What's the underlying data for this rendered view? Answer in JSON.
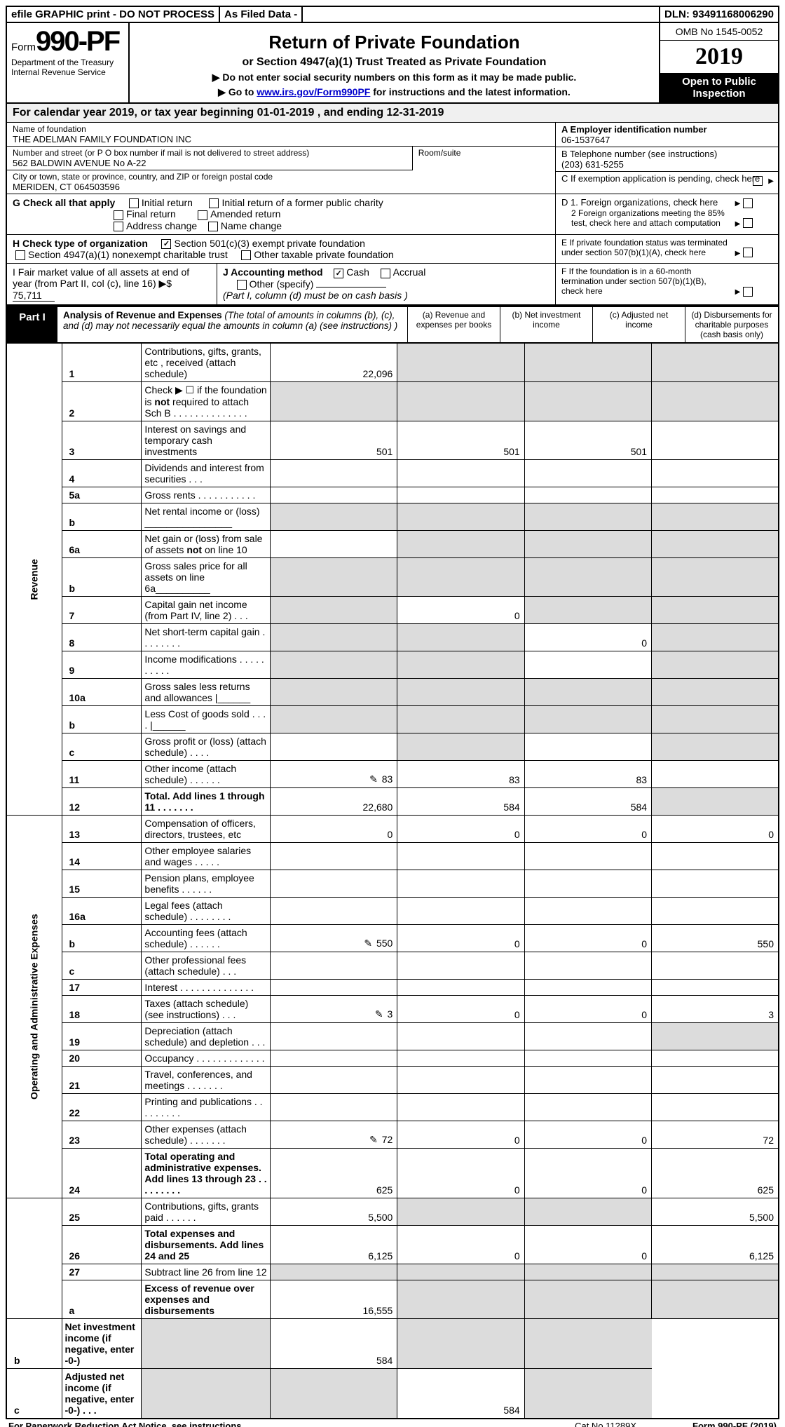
{
  "top": {
    "efile": "efile GRAPHIC print - DO NOT PROCESS",
    "asfiled": "As Filed Data -",
    "dln": "DLN: 93491168006290"
  },
  "form": {
    "prefix": "Form",
    "number": "990-PF",
    "dept1": "Department of the Treasury",
    "dept2": "Internal Revenue Service",
    "title": "Return of Private Foundation",
    "subtitle": "or Section 4947(a)(1) Trust Treated as Private Foundation",
    "warn1": "▶ Do not enter social security numbers on this form as it may be made public.",
    "warn2_pre": "▶ Go to ",
    "warn2_link": "www.irs.gov/Form990PF",
    "warn2_post": " for instructions and the latest information.",
    "omb": "OMB No 1545-0052",
    "year": "2019",
    "inspect": "Open to Public Inspection"
  },
  "calyear": "For calendar year 2019, or tax year beginning 01-01-2019                           , and ending 12-31-2019",
  "id": {
    "name_label": "Name of foundation",
    "name": "THE ADELMAN FAMILY FOUNDATION INC",
    "addr_label": "Number and street (or P O  box number if mail is not delivered to street address)",
    "addr": "562 BALDWIN AVENUE No A-22",
    "room_label": "Room/suite",
    "city_label": "City or town, state or province, country, and ZIP or foreign postal code",
    "city": "MERIDEN, CT  064503596",
    "a_label": "A Employer identification number",
    "a_val": "06-1537647",
    "b_label": "B Telephone number (see instructions)",
    "b_val": "(203) 631-5255",
    "c_label": "C If exemption application is pending, check here"
  },
  "g": {
    "label": "G Check all that apply",
    "o1": "Initial return",
    "o2": "Initial return of a former public charity",
    "o3": "Final return",
    "o4": "Amended return",
    "o5": "Address change",
    "o6": "Name change"
  },
  "h": {
    "label": "H Check type of organization",
    "o1": "Section 501(c)(3) exempt private foundation",
    "o2": "Section 4947(a)(1) nonexempt charitable trust",
    "o3": "Other taxable private foundation"
  },
  "d": {
    "d1": "D 1. Foreign organizations, check here",
    "d2": "2 Foreign organizations meeting the 85% test, check here and attach computation",
    "e": "E  If private foundation status was terminated under section 507(b)(1)(A), check here",
    "f": "F  If the foundation is in a 60-month termination under section 507(b)(1)(B), check here"
  },
  "i": {
    "label": "I Fair market value of all assets at end of year (from Part II, col  (c), line 16) ▶$ ",
    "val": "75,711"
  },
  "j": {
    "label": "J Accounting method",
    "cash": "Cash",
    "accrual": "Accrual",
    "other": "Other (specify)",
    "note": "(Part I, column (d) must be on cash basis )"
  },
  "part1": {
    "label": "Part I",
    "title": "Analysis of Revenue and Expenses",
    "note": " (The total of amounts in columns (b), (c), and (d) may not necessarily equal the amounts in column (a) (see instructions) )",
    "ca": "(a)  Revenue and expenses per books",
    "cb": "(b)  Net investment income",
    "cc": "(c)  Adjusted net income",
    "cd": "(d)  Disbursements for charitable purposes (cash basis only)"
  },
  "rev_label": "Revenue",
  "exp_label": "Operating and Administrative Expenses",
  "rows": [
    {
      "n": "1",
      "d": "Contributions, gifts, grants, etc , received (attach schedule)",
      "a": "22,096",
      "shade_bcd": true
    },
    {
      "n": "2",
      "d": "Check ▶ ☐ if the foundation is not required to attach Sch  B      .  .  .  .  .  .  .  .  .  .  .  .  .  .",
      "shade_all": true
    },
    {
      "n": "3",
      "d": "Interest on savings and temporary cash investments",
      "a": "501",
      "b": "501",
      "c": "501"
    },
    {
      "n": "4",
      "d": "Dividends and interest from securities    .   .   ."
    },
    {
      "n": "5a",
      "d": "Gross rents       .   .   .   .   .   .   .   .   .   .   ."
    },
    {
      "n": "b",
      "d": "Net rental income or (loss)  ________________",
      "shade_all": true
    },
    {
      "n": "6a",
      "d": "Net gain or (loss) from sale of assets not on line 10",
      "shade_bcd": true
    },
    {
      "n": "b",
      "d": "Gross sales price for all assets on line 6a__________",
      "shade_all": true
    },
    {
      "n": "7",
      "d": "Capital gain net income (from Part IV, line 2)   .   .   .",
      "shade_a": true,
      "b": "0",
      "shade_cd": true
    },
    {
      "n": "8",
      "d": "Net short-term capital gain  .   .   .   .   .   .   .   .",
      "shade_ab": true,
      "c": "0",
      "shade_d": true
    },
    {
      "n": "9",
      "d": "Income modifications .   .   .   .   .   .   .   .   .   .",
      "shade_ab": true,
      "shade_d": true
    },
    {
      "n": "10a",
      "d": "Gross sales less returns and allowances |______",
      "shade_all": true
    },
    {
      "n": "b",
      "d": "Less  Cost of goods sold    .   .   .   . |______",
      "shade_all": true
    },
    {
      "n": "c",
      "d": "Gross profit or (loss) (attach schedule)     .   .   .   .",
      "shade_b": true,
      "shade_d": true
    },
    {
      "n": "11",
      "d": "Other income (attach schedule)    .   .   .   .   .   .",
      "icon": true,
      "a": "83",
      "b": "83",
      "c": "83"
    },
    {
      "n": "12",
      "d": "Total. Add lines 1 through 11   .   .   .   .   .   .   .",
      "bold": true,
      "a": "22,680",
      "b": "584",
      "c": "584",
      "shade_d": true
    },
    {
      "n": "13",
      "d": "Compensation of officers, directors, trustees, etc",
      "a": "0",
      "b": "0",
      "c": "0",
      "dd": "0"
    },
    {
      "n": "14",
      "d": "Other employee salaries and wages     .   .   .   .   ."
    },
    {
      "n": "15",
      "d": "Pension plans, employee benefits  .   .   .   .   .   ."
    },
    {
      "n": "16a",
      "d": "Legal fees (attach schedule) .   .   .   .   .   .   .   ."
    },
    {
      "n": "b",
      "d": "Accounting fees (attach schedule) .   .   .   .   .   .",
      "icon": true,
      "a": "550",
      "b": "0",
      "c": "0",
      "dd": "550"
    },
    {
      "n": "c",
      "d": "Other professional fees (attach schedule)    .   .   ."
    },
    {
      "n": "17",
      "d": "Interest  .   .   .   .   .   .   .   .   .   .   .   .   .   ."
    },
    {
      "n": "18",
      "d": "Taxes (attach schedule) (see instructions)      .   .   .",
      "icon": true,
      "a": "3",
      "b": "0",
      "c": "0",
      "dd": "3"
    },
    {
      "n": "19",
      "d": "Depreciation (attach schedule) and depletion   .   .   .",
      "shade_d": true
    },
    {
      "n": "20",
      "d": "Occupancy   .   .   .   .   .   .   .   .   .   .   .   .   ."
    },
    {
      "n": "21",
      "d": "Travel, conferences, and meetings .   .   .   .   .   .   ."
    },
    {
      "n": "22",
      "d": "Printing and publications .   .   .   .   .   .   .   .   ."
    },
    {
      "n": "23",
      "d": "Other expenses (attach schedule) .   .   .   .   .   .   .",
      "icon": true,
      "a": "72",
      "b": "0",
      "c": "0",
      "dd": "72"
    },
    {
      "n": "24",
      "d": "Total operating and administrative expenses. Add lines 13 through 23  .   .   .   .   .   .   .   .   .",
      "bold": true,
      "a": "625",
      "b": "0",
      "c": "0",
      "dd": "625"
    },
    {
      "n": "25",
      "d": "Contributions, gifts, grants paid      .   .   .   .   .   .",
      "a": "5,500",
      "shade_bc": true,
      "dd": "5,500"
    },
    {
      "n": "26",
      "d": "Total expenses and disbursements. Add lines 24 and 25",
      "bold": true,
      "a": "6,125",
      "b": "0",
      "c": "0",
      "dd": "6,125"
    },
    {
      "n": "27",
      "d": "Subtract line 26 from line 12",
      "shade_abcd_all": true
    },
    {
      "n": "a",
      "d": "Excess of revenue over expenses and disbursements",
      "bold": true,
      "a": "16,555",
      "shade_bcd": true
    },
    {
      "n": "b",
      "d": "Net investment income (if negative, enter -0-)",
      "bold": true,
      "shade_a": true,
      "b": "584",
      "shade_cd": true
    },
    {
      "n": "c",
      "d": "Adjusted net income (if negative, enter -0-)   .   .   .",
      "bold": true,
      "shade_ab": true,
      "c": "584",
      "shade_d": true
    }
  ],
  "footer": {
    "left": "For Paperwork Reduction Act Notice, see instructions.",
    "mid": "Cat  No  11289X",
    "right": "Form 990-PF (2019)"
  }
}
